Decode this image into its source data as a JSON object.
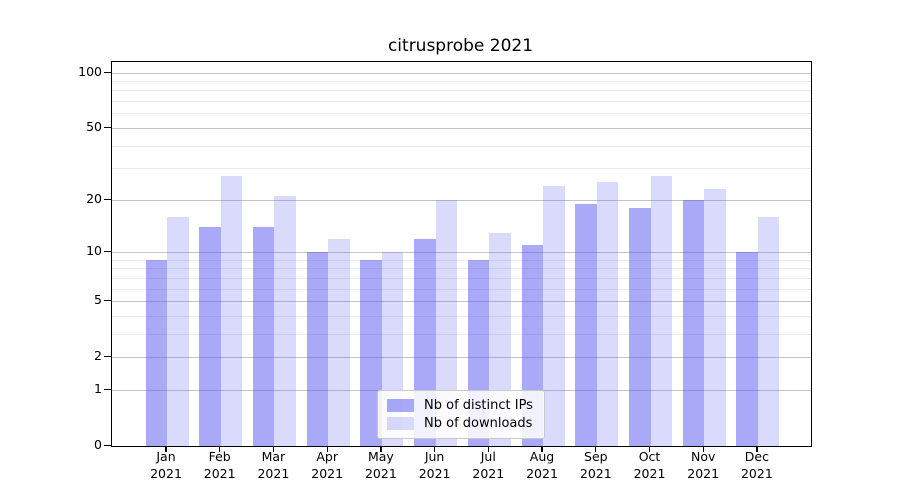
{
  "chart_data": {
    "type": "bar",
    "title": "citrusprobe 2021",
    "year_line": "2021",
    "categories": [
      "Jan",
      "Feb",
      "Mar",
      "Apr",
      "May",
      "Jun",
      "Jul",
      "Aug",
      "Sep",
      "Oct",
      "Nov",
      "Dec"
    ],
    "series": [
      {
        "name": "Nb of distinct IPs",
        "color": "rgba(80,80,240,0.49)",
        "values": [
          9,
          14,
          14,
          10,
          9,
          12,
          9,
          11,
          19,
          18,
          20,
          10
        ]
      },
      {
        "name": "Nb of downloads",
        "color": "rgba(80,80,240,0.21)",
        "values": [
          16,
          27,
          21,
          12,
          10,
          20,
          13,
          24,
          25,
          27,
          23,
          16
        ]
      }
    ],
    "yscale": "log1p",
    "ylim": [
      0,
      113
    ],
    "yticks": [
      100,
      50,
      20,
      10,
      5,
      2,
      1,
      0
    ],
    "minor_gridlines": [
      3,
      4,
      6,
      7,
      8,
      9,
      30,
      40,
      60,
      70,
      80,
      90
    ],
    "grid": true,
    "legend_position": "lower center",
    "colors": {
      "bar_dark": "rgba(80,80,240,0.49)",
      "bar_light": "rgba(80,80,240,0.21)",
      "major_grid": "#c4c4c4",
      "minor_grid": "#eaeaea",
      "axis": "#000000"
    }
  }
}
